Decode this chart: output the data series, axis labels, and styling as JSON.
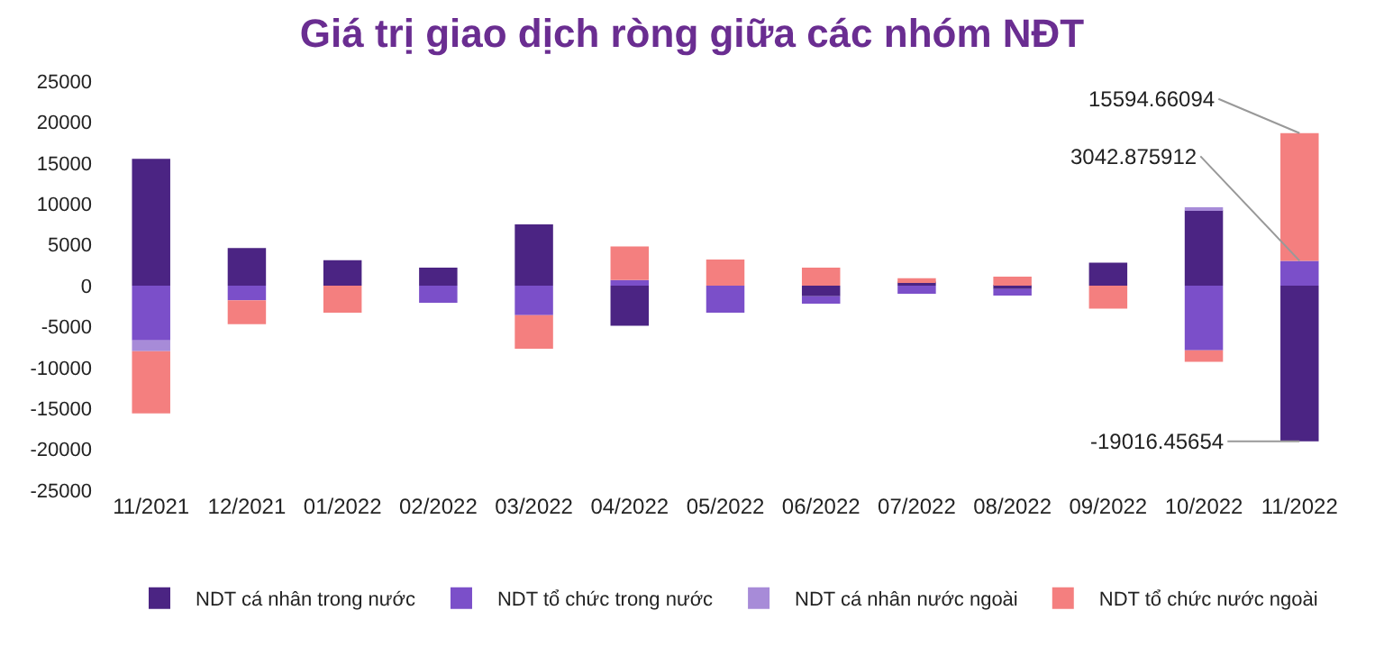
{
  "chart_data": {
    "type": "bar",
    "stacked": true,
    "title": "Giá trị giao dịch ròng giữa các nhóm NĐT",
    "categories": [
      "11/2021",
      "12/2021",
      "01/2022",
      "02/2022",
      "03/2022",
      "04/2022",
      "05/2022",
      "06/2022",
      "07/2022",
      "08/2022",
      "09/2022",
      "10/2022",
      "11/2022"
    ],
    "series": [
      {
        "name": "NDT cá nhân trong nước",
        "color": "#4b2483",
        "values": [
          15500,
          4600,
          3100,
          2200,
          7500,
          -4900,
          0,
          -1300,
          500,
          -400,
          2800,
          9200,
          -19016.45654
        ],
        "value_labels": [
          null,
          null,
          null,
          null,
          null,
          null,
          null,
          null,
          null,
          null,
          null,
          null,
          "-19016.45654"
        ]
      },
      {
        "name": "NDT tổ chức trong nước",
        "color": "#7b4fc9",
        "values": [
          -6700,
          -1800,
          0,
          -2100,
          -3600,
          700,
          -3300,
          -900,
          -1000,
          -800,
          0,
          -7900,
          3042.875912
        ],
        "value_labels": [
          null,
          null,
          null,
          null,
          null,
          null,
          null,
          null,
          null,
          null,
          null,
          null,
          "3042.875912"
        ]
      },
      {
        "name": "NDT cá nhân nước ngoài",
        "color": "#a78bd8",
        "values": [
          -1300,
          0,
          0,
          0,
          0,
          0,
          0,
          0,
          0,
          0,
          0,
          200,
          0
        ]
      },
      {
        "name": "NDT tổ chức nước ngoài",
        "color": "#f47f7f",
        "values": [
          -7600,
          -2900,
          -3300,
          0,
          -4100,
          4100,
          3200,
          2200,
          400,
          1100,
          -2800,
          -1400,
          15594.66094
        ],
        "value_labels": [
          null,
          null,
          null,
          null,
          null,
          null,
          null,
          null,
          null,
          null,
          null,
          null,
          "15594.66094"
        ]
      }
    ],
    "ylim": [
      -25000,
      25000
    ],
    "yticks": [
      25000,
      20000,
      15000,
      10000,
      5000,
      0,
      -5000,
      -10000,
      -15000,
      -20000,
      -25000
    ],
    "grid": false,
    "legend": "bottom"
  }
}
